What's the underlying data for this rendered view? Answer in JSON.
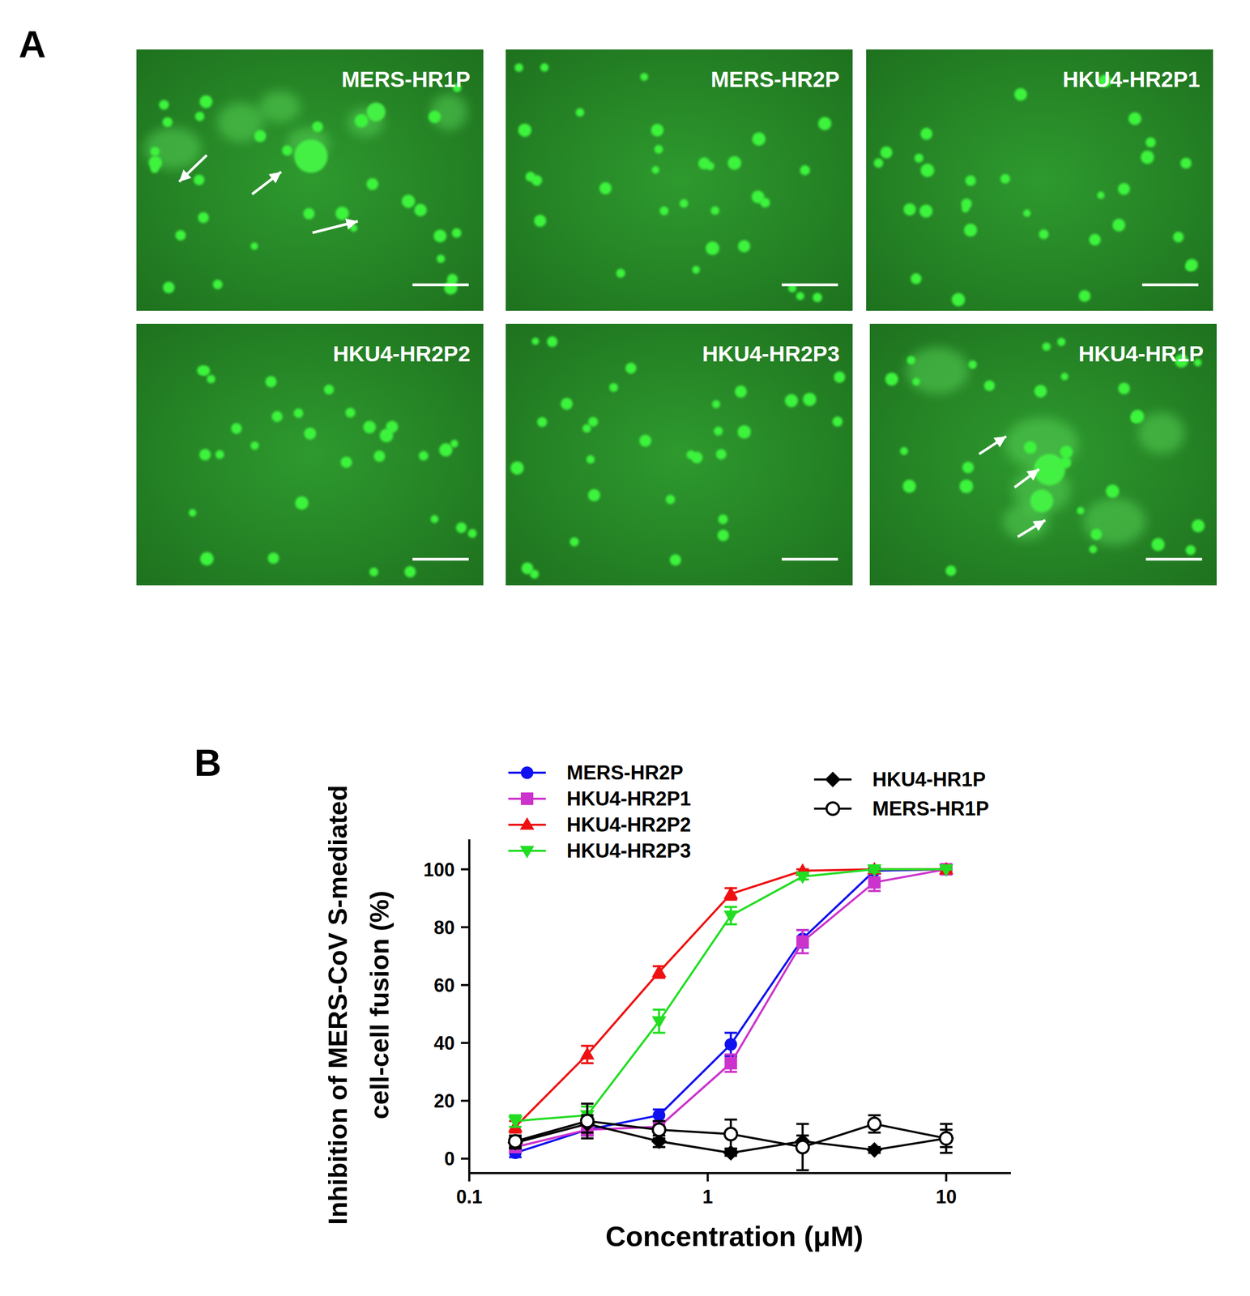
{
  "panel_a": {
    "label": "A",
    "images": [
      "MERS-HR1P",
      "MERS-HR2P",
      "HKU4-HR2P1",
      "HKU4-HR2P2",
      "HKU4-HR2P3",
      "HKU4-HR1P"
    ]
  },
  "panel_b_label": "B",
  "chart_data": {
    "type": "line",
    "xlabel": "Concentration (μM)",
    "ylabel": [
      "Inhibition of MERS-CoV S-mediated",
      "cell-cell fusion (%)"
    ],
    "log": "x",
    "grid": false,
    "legend": "top",
    "x": [
      0.156,
      0.3125,
      0.625,
      1.25,
      2.5,
      5,
      10
    ],
    "xlim": [
      0.1,
      18.5
    ],
    "xticks": [
      0.1,
      1,
      10
    ],
    "ylim": [
      -5,
      110
    ],
    "yticks": [
      0,
      20,
      40,
      60,
      80,
      100
    ],
    "series": [
      {
        "name": "MERS-HR2P",
        "color": "#1010f0",
        "marker": "circle",
        "line_style": "solid",
        "values": [
          2,
          10,
          15,
          39.5,
          76,
          99.5,
          100
        ],
        "errors": [
          1.5,
          2,
          2,
          4,
          3,
          1,
          0
        ]
      },
      {
        "name": "HKU4-HR2P1",
        "color": "#cc33cc",
        "marker": "square",
        "line_style": "solid",
        "values": [
          4,
          10,
          11,
          33,
          75,
          95.5,
          100
        ],
        "errors": [
          1.5,
          2,
          2,
          3,
          4,
          3,
          0
        ]
      },
      {
        "name": "HKU4-HR2P2",
        "color": "#ee1111",
        "marker": "triangle",
        "line_style": "solid",
        "values": [
          11,
          36,
          64.5,
          91.5,
          99.5,
          100,
          100
        ],
        "errors": [
          2,
          3,
          2,
          2,
          0.5,
          0,
          0
        ]
      },
      {
        "name": "HKU4-HR2P3",
        "color": "#22dd22",
        "marker": "triangle_down",
        "line_style": "solid",
        "values": [
          13,
          15,
          47.5,
          84,
          97.5,
          100,
          100
        ],
        "errors": [
          2,
          3,
          4,
          3,
          1,
          1,
          0
        ]
      },
      {
        "name": "HKU4-HR1P",
        "color": "#000000",
        "marker": "diamond",
        "line_style": "solid",
        "values": [
          5.5,
          12,
          6,
          2,
          6,
          3,
          7
        ],
        "errors": [
          2,
          3,
          2,
          1,
          2,
          1,
          3
        ]
      },
      {
        "name": "MERS-HR1P",
        "color": "#000000",
        "marker": "open_circle",
        "line_style": "solid",
        "values": [
          6,
          13,
          10,
          8.5,
          4,
          12,
          7
        ],
        "errors": [
          2,
          6,
          3,
          5,
          8,
          3,
          5
        ]
      }
    ]
  }
}
